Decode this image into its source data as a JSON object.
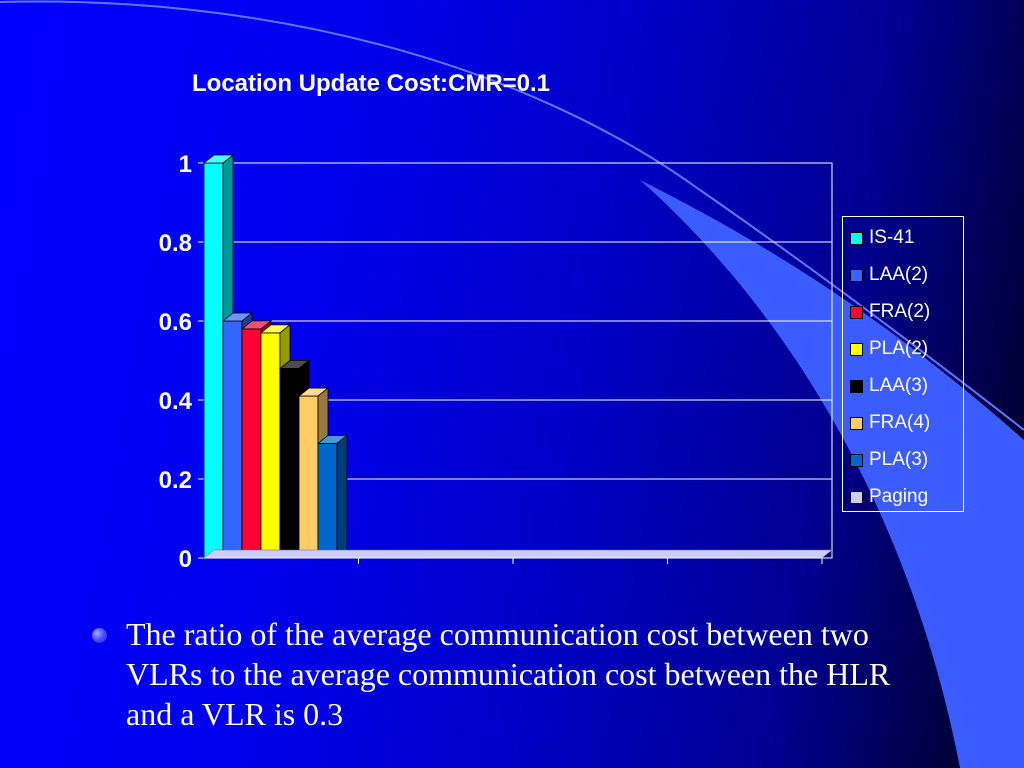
{
  "slide": {
    "bullet_text": "The ratio of the average communication cost between two VLRs to the average communication cost between the HLR and a VLR is 0.3",
    "colors": {
      "background": "#0000ff",
      "accent_swoosh": "#3b5cff",
      "text": "#ffffff"
    }
  },
  "chart_data": {
    "type": "bar",
    "title": "Location Update Cost:CMR=0.1",
    "xlabel": "",
    "ylabel": "",
    "ylim": [
      0,
      1
    ],
    "yticks": [
      "0",
      "0.2",
      "0.4",
      "0.6",
      "0.8",
      "1"
    ],
    "grid": true,
    "three_d": true,
    "legend_position": "right",
    "categories_count": 4,
    "series": [
      {
        "name": "IS-41",
        "color": "#00ffff",
        "values": [
          1.0,
          0,
          0,
          0
        ]
      },
      {
        "name": "LAA(2)",
        "color": "#3366ff",
        "values": [
          0.6,
          0,
          0,
          0
        ]
      },
      {
        "name": "FRA(2)",
        "color": "#ff0033",
        "values": [
          0.58,
          0,
          0,
          0
        ]
      },
      {
        "name": "PLA(2)",
        "color": "#ffff00",
        "values": [
          0.57,
          0,
          0,
          0
        ]
      },
      {
        "name": "LAA(3)",
        "color": "#000000",
        "values": [
          0.48,
          0,
          0,
          0
        ]
      },
      {
        "name": "FRA(4)",
        "color": "#ffcc66",
        "values": [
          0.41,
          0,
          0,
          0
        ]
      },
      {
        "name": "PLA(3)",
        "color": "#0066cc",
        "values": [
          0.29,
          0,
          0,
          0
        ]
      },
      {
        "name": "Paging",
        "color": "#ccccff",
        "values": [
          0.0,
          0,
          0,
          0
        ]
      }
    ]
  }
}
